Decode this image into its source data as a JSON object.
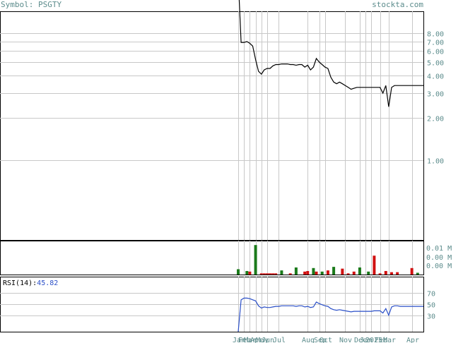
{
  "header": {
    "symbol_label": "Symbol: PSGTY",
    "site_label": "stockta.com"
  },
  "colors": {
    "frame": "#000000",
    "grid": "#c8c8c8",
    "price_line": "#000000",
    "volume_up": "#1a7a1a",
    "volume_down": "#d01010",
    "rsi_line": "#2a4fc8",
    "axis_text": "#5c8c8c",
    "header_text": "#5c8c8c",
    "rsi_value_text": "#2a4fc8"
  },
  "chart_data": [
    {
      "type": "line",
      "name": "price",
      "scale": "log",
      "ylim": [
        0.27,
        11.5
      ],
      "ytick_labels": [
        "8.00",
        "7.00",
        "6.00",
        "5.00",
        "4.00",
        "3.00",
        "2.00",
        "1.00"
      ],
      "ytick_values": [
        8,
        7,
        6,
        5,
        4,
        3,
        2,
        1
      ],
      "xtick_labels": [
        "Jan",
        "Feb",
        "Mar",
        "Apr",
        "May",
        "Jun",
        "Jul",
        "Aug",
        "Sep",
        "Oct",
        "Nov",
        "Dec",
        "Jan",
        "2025",
        "Feb",
        "Mar",
        "Apr"
      ],
      "x": [
        0,
        1,
        2,
        3,
        4,
        5,
        6,
        7,
        8,
        9,
        10,
        11,
        12,
        13,
        14,
        15,
        16,
        17,
        18,
        19,
        20,
        21,
        22,
        23,
        24,
        25,
        26,
        27,
        28,
        29,
        30,
        31,
        32,
        33,
        34,
        35,
        36,
        37,
        38,
        39,
        40,
        41,
        42,
        43,
        44,
        45,
        46,
        47,
        48,
        49,
        50,
        51,
        52,
        53,
        54,
        55,
        56,
        57,
        58,
        59,
        60,
        61,
        62,
        63,
        64
      ],
      "values": [
        20.0,
        6.9,
        6.9,
        7.0,
        6.8,
        6.5,
        5.2,
        4.3,
        4.1,
        4.4,
        4.5,
        4.5,
        4.7,
        4.8,
        4.8,
        4.85,
        4.85,
        4.85,
        4.8,
        4.8,
        4.75,
        4.8,
        4.8,
        4.6,
        4.75,
        4.4,
        4.6,
        5.3,
        5.0,
        4.8,
        4.6,
        4.5,
        3.9,
        3.6,
        3.5,
        3.6,
        3.5,
        3.4,
        3.3,
        3.2,
        3.25,
        3.3,
        3.3,
        3.3,
        3.3,
        3.3,
        3.3,
        3.3,
        3.3,
        3.3,
        3.0,
        3.4,
        2.4,
        3.3,
        3.4,
        3.4,
        3.4,
        3.4,
        3.4,
        3.4,
        3.4,
        3.4,
        3.4,
        3.4,
        3.4
      ]
    },
    {
      "type": "bar",
      "name": "volume",
      "ytick_labels": [
        "0.01 M",
        "0.00 M",
        "0.00 M"
      ],
      "ylim": [
        0,
        0.011
      ],
      "bars": [
        {
          "x": 0,
          "value": 0.0018,
          "dir": "up"
        },
        {
          "x": 3,
          "value": 0.0012,
          "dir": "up"
        },
        {
          "x": 4,
          "value": 0.001,
          "dir": "down"
        },
        {
          "x": 6,
          "value": 0.01,
          "dir": "up"
        },
        {
          "x": 8,
          "value": 0.0004,
          "dir": "down"
        },
        {
          "x": 9,
          "value": 0.0004,
          "dir": "down"
        },
        {
          "x": 10,
          "value": 0.0004,
          "dir": "down"
        },
        {
          "x": 11,
          "value": 0.0004,
          "dir": "down"
        },
        {
          "x": 12,
          "value": 0.0004,
          "dir": "down"
        },
        {
          "x": 13,
          "value": 0.0004,
          "dir": "down"
        },
        {
          "x": 15,
          "value": 0.0014,
          "dir": "up"
        },
        {
          "x": 18,
          "value": 0.0004,
          "dir": "down"
        },
        {
          "x": 20,
          "value": 0.0024,
          "dir": "up"
        },
        {
          "x": 23,
          "value": 0.001,
          "dir": "down"
        },
        {
          "x": 24,
          "value": 0.0012,
          "dir": "down"
        },
        {
          "x": 26,
          "value": 0.0022,
          "dir": "up"
        },
        {
          "x": 27,
          "value": 0.001,
          "dir": "down"
        },
        {
          "x": 29,
          "value": 0.001,
          "dir": "up"
        },
        {
          "x": 31,
          "value": 0.0014,
          "dir": "down"
        },
        {
          "x": 33,
          "value": 0.0026,
          "dir": "up"
        },
        {
          "x": 36,
          "value": 0.002,
          "dir": "down"
        },
        {
          "x": 38,
          "value": 0.0004,
          "dir": "down"
        },
        {
          "x": 40,
          "value": 0.001,
          "dir": "down"
        },
        {
          "x": 42,
          "value": 0.0024,
          "dir": "up"
        },
        {
          "x": 45,
          "value": 0.001,
          "dir": "up"
        },
        {
          "x": 47,
          "value": 0.0064,
          "dir": "down"
        },
        {
          "x": 49,
          "value": 0.0004,
          "dir": "down"
        },
        {
          "x": 51,
          "value": 0.0012,
          "dir": "down"
        },
        {
          "x": 53,
          "value": 0.0008,
          "dir": "down"
        },
        {
          "x": 55,
          "value": 0.0008,
          "dir": "down"
        },
        {
          "x": 60,
          "value": 0.0022,
          "dir": "down"
        },
        {
          "x": 62,
          "value": 0.0006,
          "dir": "up"
        }
      ]
    },
    {
      "type": "line",
      "name": "rsi",
      "label": "RSI(14):",
      "current_value": "45.82",
      "ylim": [
        0,
        100
      ],
      "ytick_labels": [
        "70",
        "50",
        "30"
      ],
      "ytick_values": [
        70,
        50,
        30
      ],
      "x": [
        0,
        1,
        2,
        3,
        4,
        5,
        6,
        7,
        8,
        9,
        10,
        11,
        12,
        13,
        14,
        15,
        16,
        17,
        18,
        19,
        20,
        21,
        22,
        23,
        24,
        25,
        26,
        27,
        28,
        29,
        30,
        31,
        32,
        33,
        34,
        35,
        36,
        37,
        38,
        39,
        40,
        41,
        42,
        43,
        44,
        45,
        46,
        47,
        48,
        49,
        50,
        51,
        52,
        53,
        54,
        55,
        56,
        57,
        58,
        59,
        60,
        61,
        62,
        63,
        64
      ],
      "values": [
        0,
        58,
        61,
        61,
        60,
        58,
        56,
        47,
        43,
        45,
        44,
        44,
        45,
        46,
        46,
        47,
        47,
        47,
        47,
        47,
        46,
        47,
        47,
        45,
        46,
        44,
        45,
        54,
        51,
        49,
        47,
        46,
        42,
        40,
        39,
        40,
        39,
        38,
        37,
        36,
        37,
        37,
        37,
        37,
        37,
        37,
        37,
        38,
        38,
        38,
        34,
        42,
        30,
        45,
        47,
        47,
        46,
        46,
        46,
        46,
        46,
        46,
        46,
        46,
        46
      ]
    }
  ]
}
